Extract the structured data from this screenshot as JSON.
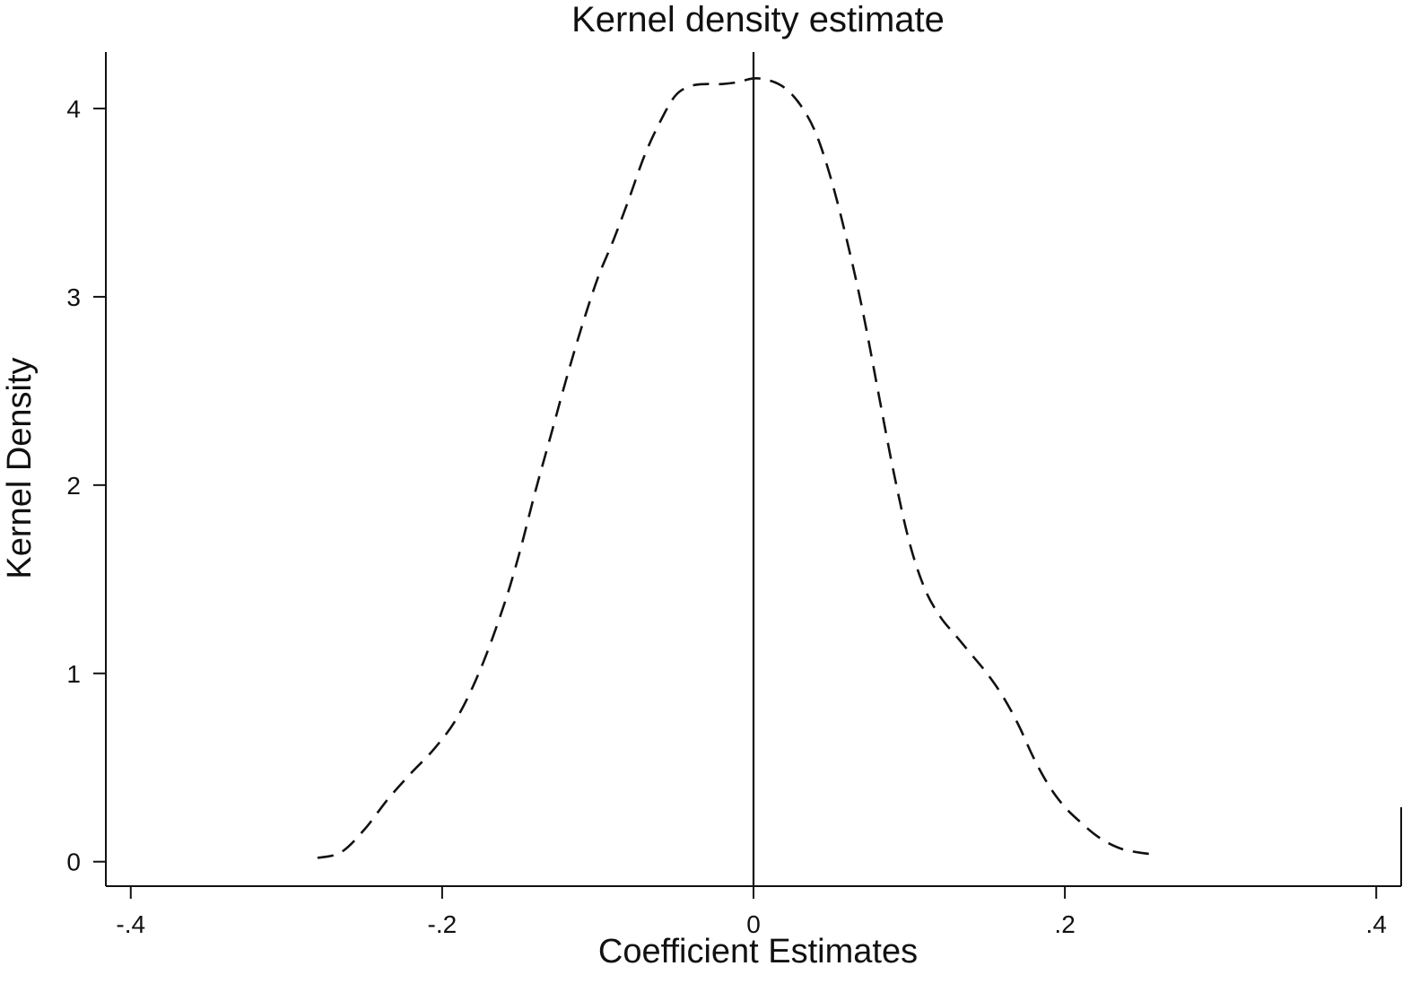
{
  "chart_data": {
    "type": "line",
    "title": "Kernel density estimate",
    "xlabel": "Coefficient Estimates",
    "ylabel": "Kernel Density",
    "xlim": [
      -0.416,
      0.416
    ],
    "ylim": [
      -0.13,
      4.3
    ],
    "x_ticks": [
      -0.4,
      -0.2,
      0,
      0.2,
      0.4
    ],
    "x_tick_labels": [
      "-.4",
      "-.2",
      "0",
      ".2",
      ".4"
    ],
    "y_ticks": [
      0,
      1,
      2,
      3,
      4
    ],
    "y_tick_labels": [
      "0",
      "1",
      "2",
      "3",
      "4"
    ],
    "reference_line_x": 0,
    "grid": false,
    "line_color": "#111111",
    "line_style": "dashed",
    "series": [
      {
        "x": [
          -0.28,
          -0.265,
          -0.25,
          -0.235,
          -0.22,
          -0.205,
          -0.19,
          -0.175,
          -0.16,
          -0.15,
          -0.14,
          -0.13,
          -0.12,
          -0.11,
          -0.1,
          -0.09,
          -0.08,
          -0.07,
          -0.06,
          -0.05,
          -0.04,
          -0.03,
          -0.02,
          -0.01,
          0,
          0.01,
          0.02,
          0.03,
          0.04,
          0.05,
          0.06,
          0.07,
          0.08,
          0.09,
          0.1,
          0.11,
          0.12,
          0.13,
          0.14,
          0.15,
          0.16,
          0.17,
          0.18,
          0.19,
          0.2,
          0.21,
          0.22,
          0.23,
          0.24,
          0.255
        ],
        "y": [
          0.02,
          0.05,
          0.17,
          0.33,
          0.47,
          0.6,
          0.77,
          1.03,
          1.37,
          1.65,
          1.97,
          2.27,
          2.57,
          2.85,
          3.1,
          3.3,
          3.52,
          3.75,
          3.93,
          4.07,
          4.12,
          4.13,
          4.13,
          4.14,
          4.16,
          4.15,
          4.11,
          4.02,
          3.87,
          3.62,
          3.3,
          2.93,
          2.5,
          2.07,
          1.7,
          1.45,
          1.3,
          1.2,
          1.1,
          1.0,
          0.88,
          0.73,
          0.55,
          0.4,
          0.29,
          0.21,
          0.14,
          0.09,
          0.06,
          0.04
        ]
      }
    ]
  }
}
